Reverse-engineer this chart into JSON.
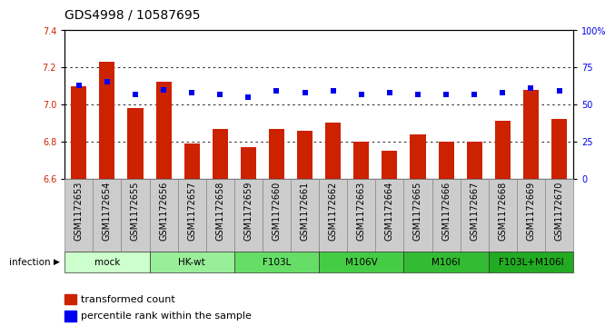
{
  "title": "GDS4998 / 10587695",
  "samples": [
    "GSM1172653",
    "GSM1172654",
    "GSM1172655",
    "GSM1172656",
    "GSM1172657",
    "GSM1172658",
    "GSM1172659",
    "GSM1172660",
    "GSM1172661",
    "GSM1172662",
    "GSM1172663",
    "GSM1172664",
    "GSM1172665",
    "GSM1172666",
    "GSM1172667",
    "GSM1172668",
    "GSM1172669",
    "GSM1172670"
  ],
  "bar_values": [
    7.1,
    7.23,
    6.98,
    7.12,
    6.79,
    6.87,
    6.77,
    6.87,
    6.86,
    6.9,
    6.8,
    6.75,
    6.84,
    6.8,
    6.8,
    6.91,
    7.08,
    6.92
  ],
  "dot_values": [
    63,
    65,
    57,
    60,
    58,
    57,
    55,
    59,
    58,
    59,
    57,
    58,
    57,
    57,
    57,
    58,
    61,
    59
  ],
  "ylim_left": [
    6.6,
    7.4
  ],
  "ylim_right": [
    0,
    100
  ],
  "yticks_left": [
    6.6,
    6.8,
    7.0,
    7.2,
    7.4
  ],
  "yticks_right": [
    0,
    25,
    50,
    75,
    100
  ],
  "ytick_labels_right": [
    "0",
    "25",
    "50",
    "75",
    "100%"
  ],
  "bar_color": "#cc2200",
  "dot_color": "#0000ee",
  "groups": [
    {
      "label": "mock",
      "start": 0,
      "end": 2,
      "color": "#ccffcc"
    },
    {
      "label": "HK-wt",
      "start": 3,
      "end": 5,
      "color": "#99ee99"
    },
    {
      "label": "F103L",
      "start": 6,
      "end": 8,
      "color": "#66dd66"
    },
    {
      "label": "M106V",
      "start": 9,
      "end": 11,
      "color": "#44cc44"
    },
    {
      "label": "M106I",
      "start": 12,
      "end": 14,
      "color": "#33bb33"
    },
    {
      "label": "F103L+M106I",
      "start": 15,
      "end": 17,
      "color": "#22aa22"
    }
  ],
  "group_row_label": "infection",
  "legend_items": [
    {
      "label": "transformed count",
      "color": "#cc2200"
    },
    {
      "label": "percentile rank within the sample",
      "color": "#0000ee"
    }
  ],
  "background_color": "#ffffff",
  "grid_linestyle": "dotted",
  "title_fontsize": 10,
  "tick_fontsize": 7,
  "bar_width": 0.55,
  "sample_box_color": "#cccccc",
  "sample_box_edge": "#888888"
}
